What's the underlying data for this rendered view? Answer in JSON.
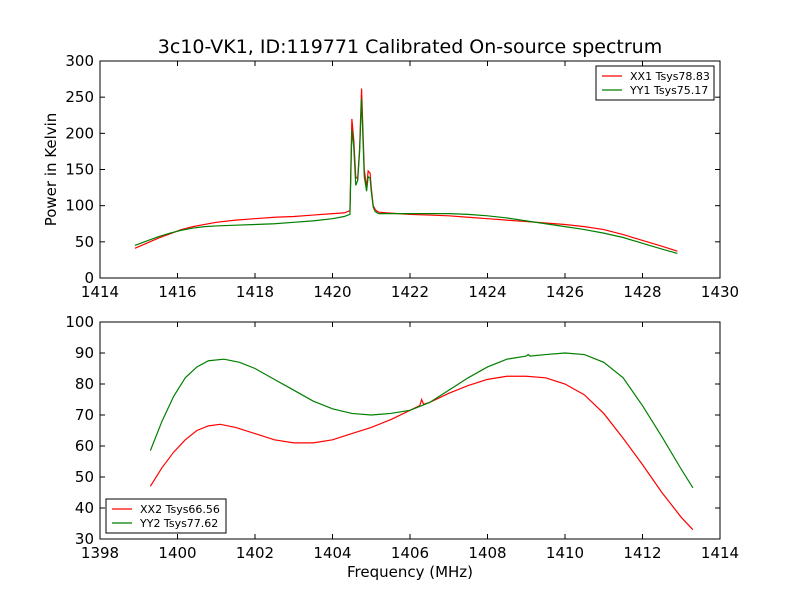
{
  "figure": {
    "title": "3c10-VK1, ID:119771 Calibrated On-source spectrum",
    "xlabel": "Frequency (MHz)"
  },
  "colors": {
    "red": "#ff0000",
    "green": "#007f00"
  },
  "chart_data": [
    {
      "type": "line",
      "title": "3c10-VK1, ID:119771 Calibrated On-source spectrum",
      "xlabel": "",
      "ylabel": "Power in Kelvin",
      "xlim": [
        1414,
        1430
      ],
      "ylim": [
        0,
        300
      ],
      "xticks": [
        1414,
        1416,
        1418,
        1420,
        1422,
        1424,
        1426,
        1428,
        1430
      ],
      "yticks": [
        0,
        50,
        100,
        150,
        200,
        250,
        300
      ],
      "grid": false,
      "legend": "top-right",
      "series": [
        {
          "name": "XX1 Tsys78.83",
          "color": "#ff0000",
          "x": [
            1414.9,
            1415.2,
            1415.5,
            1415.8,
            1416.1,
            1416.4,
            1416.7,
            1417.0,
            1417.5,
            1418.0,
            1418.5,
            1419.0,
            1419.5,
            1420.0,
            1420.3,
            1420.45,
            1420.5,
            1420.55,
            1420.6,
            1420.65,
            1420.7,
            1420.75,
            1420.82,
            1420.88,
            1420.92,
            1420.97,
            1421.0,
            1421.05,
            1421.1,
            1421.15,
            1421.2,
            1421.4,
            1421.7,
            1422.0,
            1422.5,
            1423.0,
            1423.5,
            1424.0,
            1424.5,
            1425.0,
            1425.5,
            1426.0,
            1426.5,
            1427.0,
            1427.5,
            1428.0,
            1428.5,
            1428.9
          ],
          "y": [
            41,
            48,
            55,
            61,
            67,
            71,
            74,
            77,
            80,
            82,
            84,
            85,
            87,
            89,
            90,
            93,
            220,
            190,
            140,
            137,
            180,
            262,
            150,
            125,
            148,
            145,
            125,
            100,
            95,
            92,
            91,
            90,
            89,
            88,
            87,
            86,
            84,
            82,
            80,
            78,
            76,
            74,
            71,
            67,
            60,
            52,
            44,
            37
          ]
        },
        {
          "name": "YY1 Tsys75.17",
          "color": "#007f00",
          "x": [
            1414.9,
            1415.2,
            1415.5,
            1415.8,
            1416.1,
            1416.4,
            1416.7,
            1417.0,
            1417.5,
            1418.0,
            1418.5,
            1419.0,
            1419.5,
            1420.0,
            1420.3,
            1420.45,
            1420.5,
            1420.55,
            1420.6,
            1420.65,
            1420.7,
            1420.75,
            1420.82,
            1420.88,
            1420.92,
            1420.97,
            1421.0,
            1421.05,
            1421.1,
            1421.15,
            1421.2,
            1421.4,
            1421.7,
            1422.0,
            1422.5,
            1423.0,
            1423.5,
            1424.0,
            1424.5,
            1425.0,
            1425.5,
            1426.0,
            1426.5,
            1427.0,
            1427.5,
            1428.0,
            1428.5,
            1428.9
          ],
          "y": [
            45,
            51,
            57,
            62,
            66,
            69,
            71,
            72,
            73,
            74,
            75,
            77,
            79,
            82,
            85,
            88,
            205,
            180,
            128,
            135,
            175,
            248,
            140,
            120,
            140,
            138,
            120,
            98,
            92,
            90,
            89,
            89,
            89,
            89,
            89,
            89,
            88,
            86,
            83,
            79,
            75,
            71,
            67,
            62,
            56,
            48,
            40,
            34
          ]
        }
      ]
    },
    {
      "type": "line",
      "title": "",
      "xlabel": "Frequency (MHz)",
      "ylabel": "",
      "xlim": [
        1398,
        1414
      ],
      "ylim": [
        30,
        100
      ],
      "xticks": [
        1398,
        1400,
        1402,
        1404,
        1406,
        1408,
        1410,
        1412,
        1414
      ],
      "yticks": [
        30,
        40,
        50,
        60,
        70,
        80,
        90,
        100
      ],
      "grid": false,
      "legend": "bottom-left",
      "series": [
        {
          "name": "XX2 Tsys66.56",
          "color": "#ff0000",
          "x": [
            1399.3,
            1399.6,
            1399.9,
            1400.2,
            1400.5,
            1400.8,
            1401.1,
            1401.5,
            1402.0,
            1402.5,
            1403.0,
            1403.5,
            1404.0,
            1404.5,
            1405.0,
            1405.5,
            1406.0,
            1406.25,
            1406.3,
            1406.35,
            1406.5,
            1407.0,
            1407.5,
            1408.0,
            1408.5,
            1409.0,
            1409.5,
            1410.0,
            1410.5,
            1411.0,
            1411.5,
            1412.0,
            1412.5,
            1413.0,
            1413.3
          ],
          "y": [
            47,
            53,
            58,
            62,
            65,
            66.5,
            67,
            66,
            64,
            62,
            61,
            61,
            62,
            64,
            66,
            68.5,
            71.5,
            73,
            75,
            73.5,
            74,
            77,
            79.5,
            81.5,
            82.5,
            82.5,
            82,
            80,
            76.5,
            70.5,
            62.5,
            54,
            45,
            37,
            33
          ]
        },
        {
          "name": "YY2 Tsys77.62",
          "color": "#007f00",
          "x": [
            1399.3,
            1399.6,
            1399.9,
            1400.2,
            1400.5,
            1400.8,
            1401.2,
            1401.6,
            1402.0,
            1402.5,
            1403.0,
            1403.5,
            1404.0,
            1404.5,
            1405.0,
            1405.5,
            1406.0,
            1406.5,
            1407.0,
            1407.5,
            1408.0,
            1408.5,
            1409.0,
            1409.05,
            1409.1,
            1409.5,
            1410.0,
            1410.5,
            1411.0,
            1411.5,
            1412.0,
            1412.5,
            1413.0,
            1413.3
          ],
          "y": [
            58.5,
            68,
            76,
            82,
            85.5,
            87.5,
            88,
            87,
            85,
            81.5,
            78,
            74.5,
            72,
            70.5,
            70,
            70.5,
            71.5,
            74,
            78,
            82,
            85.5,
            88,
            89,
            89.5,
            89,
            89.5,
            90,
            89.5,
            87,
            82,
            73,
            63,
            52.5,
            46.5
          ]
        }
      ]
    }
  ]
}
